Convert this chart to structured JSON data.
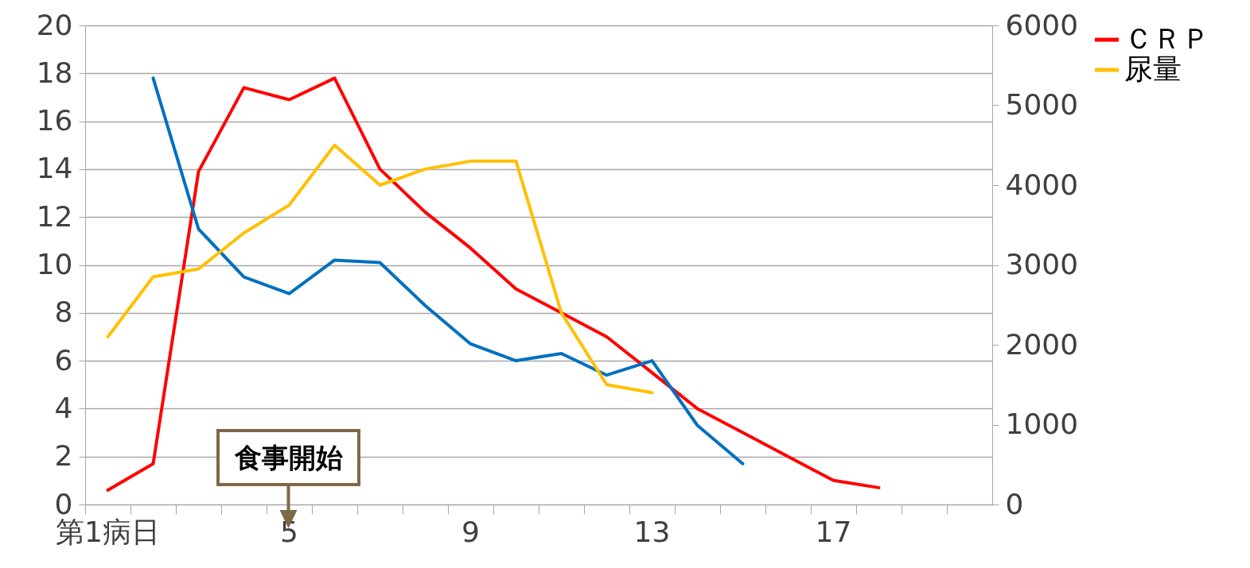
{
  "chart_data": {
    "type": "line",
    "categories": [
      "第1病日",
      null,
      null,
      null,
      "5",
      null,
      null,
      null,
      "9",
      null,
      null,
      null,
      "13",
      null,
      null,
      null,
      "17",
      null,
      null,
      null
    ],
    "series": [
      {
        "name": "ＣＲＰ",
        "color": "#ff0000",
        "values": [
          0.6,
          1.7,
          13.9,
          17.4,
          16.9,
          17.8,
          14.0,
          12.2,
          10.7,
          9.0,
          8.0,
          7.0,
          5.5,
          4.0,
          3.0,
          2.0,
          1.0,
          0.7,
          null,
          null
        ]
      },
      {
        "name": "尿量",
        "color": "#ffc000",
        "axis": "y2",
        "values": [
          2100,
          2850,
          2950,
          3400,
          3750,
          4500,
          4000,
          4200,
          4300,
          4300,
          2400,
          1500,
          1400,
          null,
          null,
          null,
          null,
          null,
          null,
          null
        ]
      },
      {
        "color": "#0070c0",
        "values": [
          null,
          17.8,
          11.5,
          9.5,
          8.8,
          10.2,
          10.1,
          8.3,
          6.7,
          6.0,
          6.3,
          5.4,
          6.0,
          3.3,
          1.7,
          null,
          null,
          null,
          null,
          null
        ]
      }
    ],
    "ylim": [
      0,
      20
    ],
    "yticks": [
      0,
      2,
      4,
      6,
      8,
      10,
      12,
      14,
      16,
      18,
      20
    ],
    "y2lim": [
      0,
      6000
    ],
    "y2ticks": [
      0,
      1000,
      2000,
      3000,
      4000,
      5000,
      6000
    ],
    "grid": "y",
    "legend": "right",
    "annotations": [
      "食事開始"
    ]
  }
}
